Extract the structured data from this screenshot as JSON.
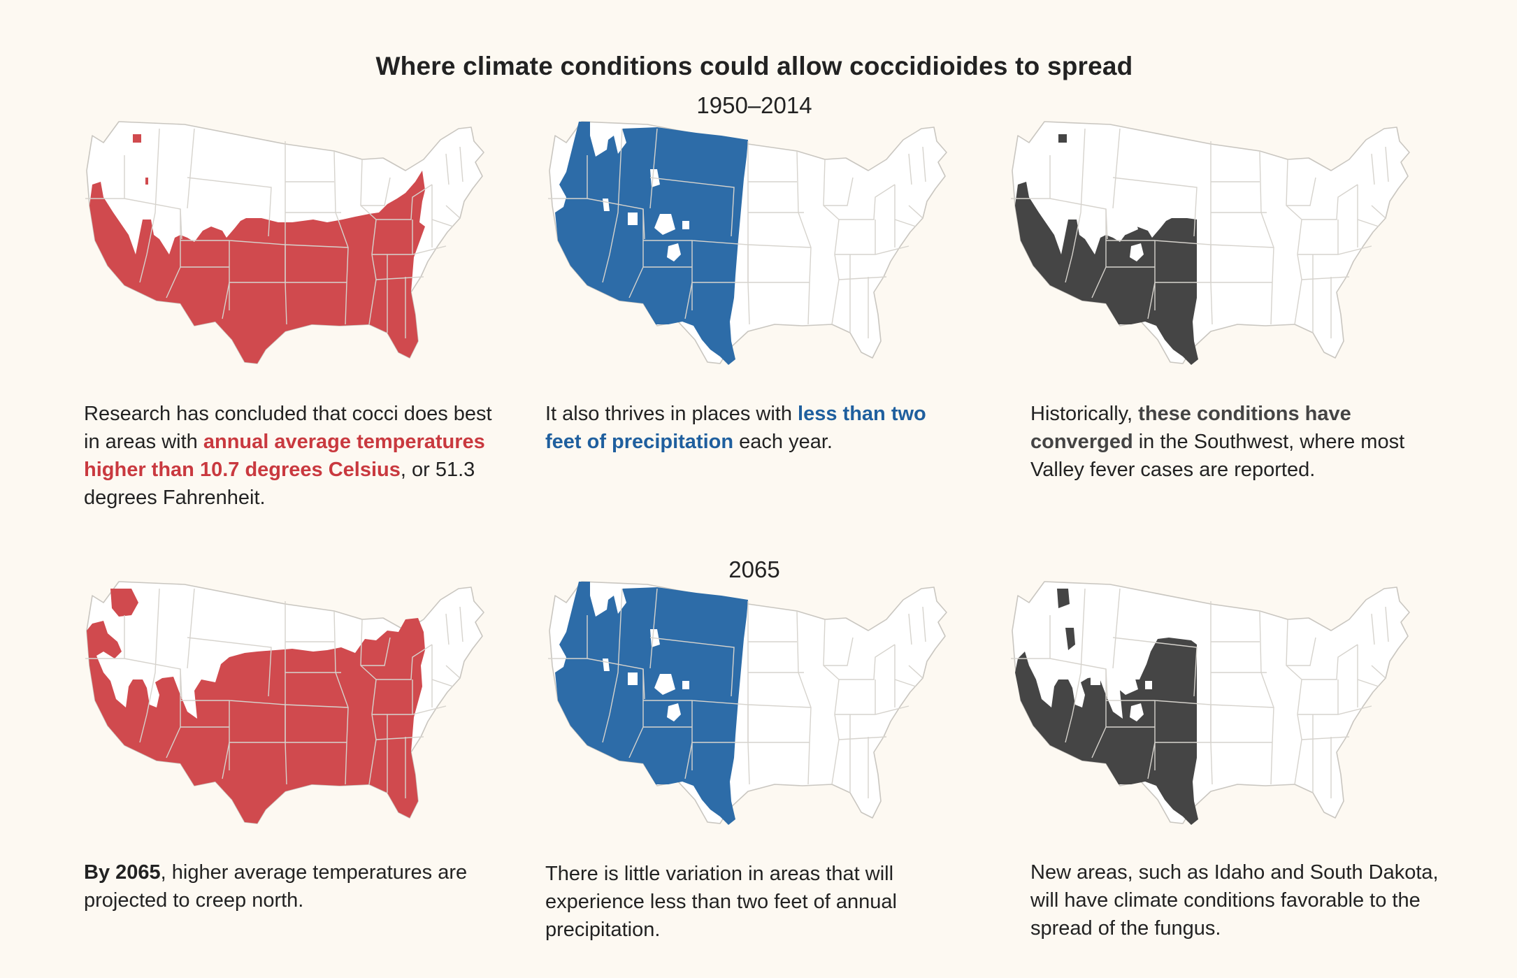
{
  "title": "Where climate conditions could allow coccidioides to spread",
  "periods": [
    "1950–2014",
    "2065"
  ],
  "colors": {
    "background": "#fdf9f2",
    "temperature": "#d04a4e",
    "precipitation": "#2d6ca8",
    "converged": "#454545",
    "state_outline": "#c9c6c0",
    "text_red": "#c9393f",
    "text_blue": "#1f5f9e"
  },
  "rows": [
    {
      "maps": [
        {
          "variable": "temperature",
          "period": "1950–2014"
        },
        {
          "variable": "precipitation",
          "period": "1950–2014"
        },
        {
          "variable": "converged",
          "period": "1950–2014"
        }
      ],
      "captions": {
        "temp": {
          "p1": "Research has concluded that cocci does best in areas with ",
          "em": "annual average temperatures higher than 10.7 degrees Celsius",
          "p2": ", or 51.3 degrees Fahrenheit."
        },
        "precip": {
          "p1": "It also thrives in places with ",
          "em": "less than two feet of precipitation",
          "p2": " each year."
        },
        "both": {
          "p1": "Historically, ",
          "em": "these conditions have converged",
          "p2": " in the Southwest, where most Valley fever cases are reported."
        }
      }
    },
    {
      "maps": [
        {
          "variable": "temperature",
          "period": "2065"
        },
        {
          "variable": "precipitation",
          "period": "2065"
        },
        {
          "variable": "converged",
          "period": "2065"
        }
      ],
      "captions": {
        "temp": {
          "em": "By 2065",
          "p2": ", higher average temperatures are projected to creep north."
        },
        "precip": {
          "p1": "There is little variation in areas that will experience less than two feet of annual precipitation."
        },
        "both": {
          "p1": "New areas, such as Idaho and South Dakota, will have climate conditions favorable to the spread of the fungus."
        }
      }
    }
  ]
}
